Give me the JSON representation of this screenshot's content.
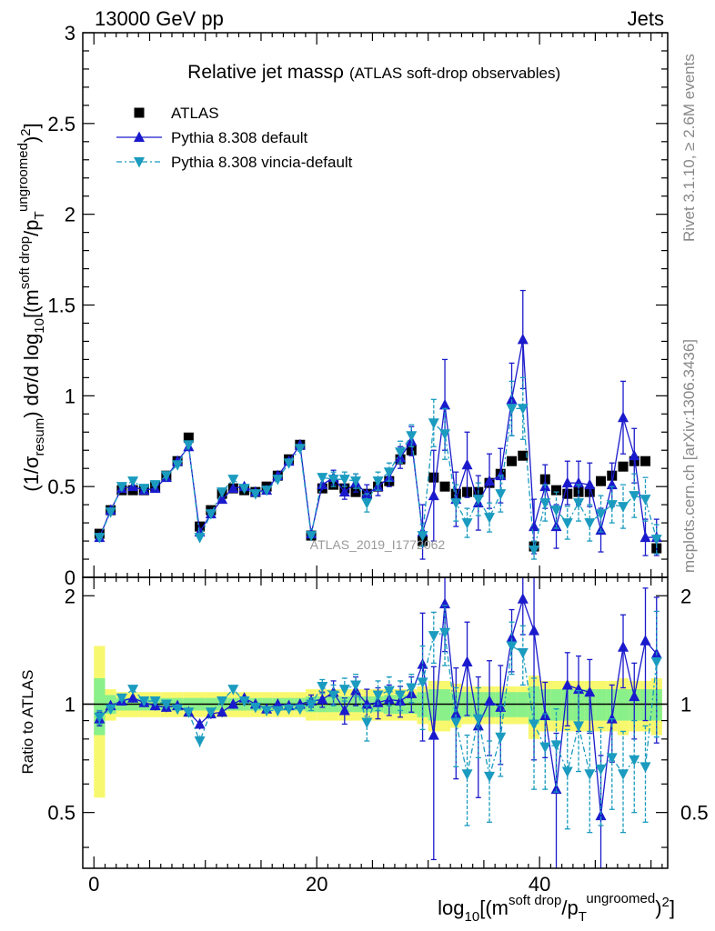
{
  "header": {
    "left": "13000 GeV pp",
    "right": "Jets"
  },
  "title": {
    "main": "Relative jet massρ",
    "sub": "(ATLAS soft-drop observables)"
  },
  "watermark": "ATLAS_2019_I1772062",
  "side_right_top": "Rivet 3.1.10, ≥ 2.6M events",
  "side_right_bottom": "mcplots.cern.ch [arXiv:1306.3436]",
  "colors": {
    "atlas": "#000000",
    "default": "#1a1acc",
    "vincia": "#1a9bbf",
    "band_inner": "#8af08a",
    "band_outer": "#f8f86e"
  },
  "chart_data": [
    {
      "panel": "main",
      "type": "scatter",
      "ylabel": "(1/σresum) dσ/d log10[(m soft drop/pT ungroomed)2]",
      "xlim": [
        -1,
        51.5
      ],
      "ylim": [
        0,
        3
      ],
      "yticks": [
        "0",
        "0.5",
        "1",
        "1.5",
        "2",
        "2.5",
        "3"
      ],
      "legend_position": "top-left",
      "x": [
        0.5,
        1.5,
        2.5,
        3.5,
        4.5,
        5.5,
        6.5,
        7.5,
        8.5,
        9.5,
        10.5,
        11.5,
        12.5,
        13.5,
        14.5,
        15.5,
        16.5,
        17.5,
        18.5,
        19.5,
        20.5,
        21.5,
        22.5,
        23.5,
        24.5,
        25.5,
        26.5,
        27.5,
        28.5,
        29.5,
        30.5,
        31.5,
        32.5,
        33.5,
        34.5,
        35.5,
        36.5,
        37.5,
        38.5,
        39.5,
        40.5,
        41.5,
        42.5,
        43.5,
        44.5,
        45.5,
        46.5,
        47.5,
        48.5,
        49.5,
        50.5
      ],
      "series": [
        {
          "name": "ATLAS",
          "marker": "square",
          "values": [
            0.24,
            0.37,
            0.48,
            0.48,
            0.48,
            0.5,
            0.56,
            0.64,
            0.77,
            0.28,
            0.37,
            0.46,
            0.49,
            0.48,
            0.47,
            0.5,
            0.56,
            0.65,
            0.73,
            0.23,
            0.49,
            0.51,
            0.49,
            0.47,
            0.46,
            0.5,
            0.53,
            0.65,
            0.7,
            0.2,
            0.55,
            0.5,
            0.46,
            0.47,
            0.47,
            0.52,
            0.57,
            0.64,
            0.67,
            0.17,
            0.54,
            0.48,
            0.46,
            0.47,
            0.47,
            0.53,
            0.56,
            0.61,
            0.64,
            0.64,
            0.16
          ],
          "errors": [
            0.02,
            0.02,
            0.02,
            0.02,
            0.02,
            0.02,
            0.02,
            0.02,
            0.02,
            0.02,
            0.02,
            0.02,
            0.02,
            0.02,
            0.02,
            0.02,
            0.02,
            0.02,
            0.02,
            0.02,
            0.02,
            0.02,
            0.02,
            0.02,
            0.02,
            0.02,
            0.02,
            0.02,
            0.02,
            0.02,
            0.02,
            0.02,
            0.02,
            0.02,
            0.02,
            0.02,
            0.02,
            0.02,
            0.02,
            0.02,
            0.02,
            0.02,
            0.02,
            0.02,
            0.02,
            0.02,
            0.02,
            0.02,
            0.02,
            0.02,
            0.02
          ]
        },
        {
          "name": "Pythia 8.308 default",
          "marker": "triangle-up",
          "values": [
            0.22,
            0.37,
            0.49,
            0.5,
            0.48,
            0.49,
            0.55,
            0.64,
            0.72,
            0.25,
            0.35,
            0.43,
            0.49,
            0.5,
            0.47,
            0.48,
            0.56,
            0.64,
            0.73,
            0.24,
            0.51,
            0.55,
            0.47,
            0.52,
            0.46,
            0.5,
            0.55,
            0.66,
            0.75,
            0.25,
            0.45,
            0.95,
            0.43,
            0.62,
            0.41,
            0.53,
            0.56,
            0.98,
            1.31,
            0.28,
            0.5,
            0.28,
            0.52,
            0.52,
            0.51,
            0.26,
            0.51,
            0.88,
            0.67,
            0.22,
            0.22
          ],
          "errors": [
            0.02,
            0.02,
            0.02,
            0.02,
            0.02,
            0.02,
            0.02,
            0.02,
            0.02,
            0.02,
            0.02,
            0.02,
            0.02,
            0.02,
            0.02,
            0.02,
            0.02,
            0.02,
            0.02,
            0.02,
            0.03,
            0.04,
            0.04,
            0.05,
            0.05,
            0.05,
            0.05,
            0.06,
            0.08,
            0.15,
            0.25,
            0.25,
            0.15,
            0.18,
            0.15,
            0.15,
            0.15,
            0.2,
            0.27,
            0.15,
            0.12,
            0.12,
            0.12,
            0.12,
            0.12,
            0.12,
            0.12,
            0.2,
            0.15,
            0.1,
            0.1
          ]
        },
        {
          "name": "Pythia 8.308 vincia-default",
          "marker": "triangle-down",
          "values": [
            0.22,
            0.36,
            0.5,
            0.53,
            0.49,
            0.51,
            0.56,
            0.62,
            0.73,
            0.22,
            0.35,
            0.47,
            0.54,
            0.49,
            0.46,
            0.48,
            0.54,
            0.63,
            0.71,
            0.23,
            0.55,
            0.54,
            0.54,
            0.53,
            0.41,
            0.53,
            0.58,
            0.69,
            0.78,
            0.23,
            0.85,
            0.79,
            0.41,
            0.3,
            0.43,
            0.33,
            0.46,
            0.93,
            0.93,
            0.15,
            0.41,
            0.37,
            0.3,
            0.41,
            0.3,
            0.35,
            0.4,
            0.39,
            0.45,
            0.43,
            0.21
          ],
          "errors": [
            0.02,
            0.02,
            0.02,
            0.02,
            0.02,
            0.02,
            0.02,
            0.02,
            0.02,
            0.02,
            0.02,
            0.02,
            0.02,
            0.02,
            0.02,
            0.02,
            0.02,
            0.02,
            0.02,
            0.02,
            0.03,
            0.04,
            0.04,
            0.04,
            0.05,
            0.05,
            0.05,
            0.06,
            0.06,
            0.06,
            0.13,
            0.14,
            0.1,
            0.08,
            0.09,
            0.08,
            0.1,
            0.15,
            0.17,
            0.05,
            0.1,
            0.1,
            0.09,
            0.1,
            0.1,
            0.1,
            0.1,
            0.12,
            0.12,
            0.12,
            0.08
          ]
        }
      ]
    },
    {
      "panel": "ratio",
      "type": "scatter",
      "ylabel": "Ratio to ATLAS",
      "xlabel": "log10[(m soft drop/pT ungroomed)2]",
      "xlim": [
        -1,
        51.5
      ],
      "ylim": [
        0.35,
        2.25
      ],
      "log_y": true,
      "xticks": [
        "0",
        "20",
        "40"
      ],
      "yticks": [
        "0.5",
        "1",
        "2"
      ],
      "reference": 1,
      "band_inner": [
        0.18,
        0.06,
        0.04,
        0.04,
        0.04,
        0.04,
        0.04,
        0.04,
        0.04,
        0.04,
        0.04,
        0.04,
        0.04,
        0.04,
        0.04,
        0.04,
        0.04,
        0.04,
        0.04,
        0.05,
        0.05,
        0.05,
        0.05,
        0.05,
        0.05,
        0.05,
        0.06,
        0.06,
        0.06,
        0.08,
        0.1,
        0.1,
        0.08,
        0.08,
        0.08,
        0.08,
        0.08,
        0.08,
        0.08,
        0.12,
        0.1,
        0.1,
        0.1,
        0.1,
        0.1,
        0.1,
        0.1,
        0.1,
        0.1,
        0.1,
        0.1
      ],
      "band_outer": [
        0.45,
        0.1,
        0.08,
        0.08,
        0.08,
        0.08,
        0.08,
        0.08,
        0.08,
        0.08,
        0.08,
        0.08,
        0.08,
        0.08,
        0.08,
        0.08,
        0.08,
        0.08,
        0.08,
        0.1,
        0.1,
        0.1,
        0.1,
        0.1,
        0.1,
        0.1,
        0.1,
        0.1,
        0.1,
        0.12,
        0.16,
        0.16,
        0.14,
        0.12,
        0.12,
        0.12,
        0.12,
        0.12,
        0.12,
        0.2,
        0.16,
        0.16,
        0.16,
        0.16,
        0.16,
        0.16,
        0.16,
        0.18,
        0.16,
        0.16,
        0.18
      ],
      "series": [
        {
          "name": "Pythia 8.308 default",
          "values": [
            0.91,
            0.99,
            1.02,
            1.04,
            1.01,
            0.99,
            0.98,
            0.99,
            0.95,
            0.88,
            0.94,
            0.95,
            1.0,
            1.04,
            1.0,
            0.97,
            1.0,
            0.99,
            1.0,
            1.02,
            1.03,
            1.08,
            0.96,
            1.09,
            1.0,
            1.01,
            1.03,
            1.02,
            1.07,
            1.29,
            0.82,
            1.9,
            0.94,
            1.31,
            0.87,
            1.02,
            0.98,
            1.53,
            1.96,
            1.6,
            0.93,
            0.58,
            1.13,
            1.1,
            1.08,
            0.49,
            0.91,
            1.44,
            1.05,
            1.5,
            1.38
          ],
          "errors": [
            0.04,
            0.03,
            0.03,
            0.03,
            0.03,
            0.03,
            0.03,
            0.03,
            0.03,
            0.03,
            0.03,
            0.03,
            0.03,
            0.03,
            0.03,
            0.03,
            0.03,
            0.03,
            0.03,
            0.04,
            0.05,
            0.08,
            0.08,
            0.1,
            0.1,
            0.1,
            0.1,
            0.1,
            0.12,
            0.5,
            0.45,
            0.5,
            0.32,
            0.38,
            0.32,
            0.3,
            0.3,
            0.3,
            0.4,
            0.9,
            0.22,
            0.25,
            0.26,
            0.26,
            0.25,
            0.23,
            0.22,
            0.33,
            0.25,
            0.6,
            0.6
          ]
        },
        {
          "name": "Pythia 8.308 vincia-default",
          "values": [
            0.92,
            0.97,
            1.04,
            1.1,
            1.02,
            1.02,
            1.0,
            0.97,
            0.95,
            0.79,
            0.95,
            1.02,
            1.1,
            1.02,
            0.98,
            0.96,
            0.96,
            0.97,
            0.97,
            1.0,
            1.12,
            1.06,
            1.1,
            1.13,
            0.89,
            1.06,
            1.09,
            1.06,
            1.11,
            1.15,
            1.55,
            1.58,
            0.89,
            0.64,
            0.91,
            0.63,
            0.81,
            1.45,
            1.39,
            0.88,
            0.76,
            0.77,
            0.65,
            0.87,
            0.64,
            0.66,
            0.71,
            0.64,
            0.7,
            0.67,
            1.31
          ],
          "errors": [
            0.04,
            0.03,
            0.03,
            0.03,
            0.03,
            0.03,
            0.03,
            0.03,
            0.03,
            0.03,
            0.03,
            0.03,
            0.03,
            0.03,
            0.03,
            0.03,
            0.03,
            0.03,
            0.03,
            0.04,
            0.05,
            0.07,
            0.08,
            0.08,
            0.1,
            0.1,
            0.1,
            0.1,
            0.1,
            0.3,
            0.25,
            0.3,
            0.22,
            0.18,
            0.2,
            0.16,
            0.18,
            0.24,
            0.26,
            0.3,
            0.18,
            0.2,
            0.2,
            0.22,
            0.2,
            0.2,
            0.2,
            0.2,
            0.2,
            0.2,
            0.5
          ]
        }
      ]
    }
  ]
}
